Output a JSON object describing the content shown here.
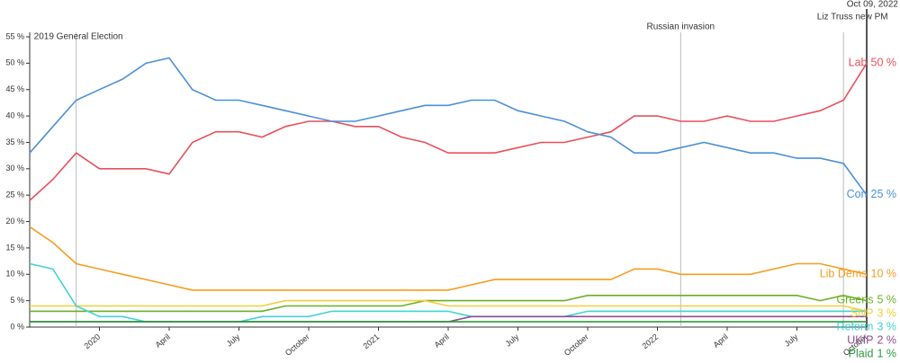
{
  "chart_data": {
    "type": "line",
    "x": [
      "2019-10",
      "2019-11",
      "2019-12",
      "2020-01",
      "2020-02",
      "2020-03",
      "2020-04",
      "2020-05",
      "2020-06",
      "2020-07",
      "2020-08",
      "2020-09",
      "2020-10",
      "2020-11",
      "2020-12",
      "2021-01",
      "2021-02",
      "2021-03",
      "2021-04",
      "2021-05",
      "2021-06",
      "2021-07",
      "2021-08",
      "2021-09",
      "2021-10",
      "2021-11",
      "2021-12",
      "2022-01",
      "2022-02",
      "2022-03",
      "2022-04",
      "2022-05",
      "2022-06",
      "2022-07",
      "2022-08",
      "2022-09",
      "2022-10"
    ],
    "xlim": [
      "2019-10",
      "2022-10"
    ],
    "xticks": [
      {
        "value": "2020-01",
        "label": "2020"
      },
      {
        "value": "2020-04",
        "label": "April"
      },
      {
        "value": "2020-07",
        "label": "July"
      },
      {
        "value": "2020-10",
        "label": "October"
      },
      {
        "value": "2021-01",
        "label": "2021"
      },
      {
        "value": "2021-04",
        "label": "April"
      },
      {
        "value": "2021-07",
        "label": "July"
      },
      {
        "value": "2021-10",
        "label": "October"
      },
      {
        "value": "2022-01",
        "label": "2022"
      },
      {
        "value": "2022-04",
        "label": "April"
      },
      {
        "value": "2022-07",
        "label": "July"
      },
      {
        "value": "2022-10",
        "label": "October"
      }
    ],
    "ylim": [
      0,
      55
    ],
    "yticks": [
      {
        "value": 0,
        "label": "0 %"
      },
      {
        "value": 5,
        "label": "5 %"
      },
      {
        "value": 10,
        "label": "10 %"
      },
      {
        "value": 15,
        "label": "15 %"
      },
      {
        "value": 20,
        "label": "20 %"
      },
      {
        "value": 25,
        "label": "25 %"
      },
      {
        "value": 30,
        "label": "30 %"
      },
      {
        "value": 35,
        "label": "35 %"
      },
      {
        "value": 40,
        "label": "40 %"
      },
      {
        "value": 45,
        "label": "45 %"
      },
      {
        "value": 50,
        "label": "50 %"
      },
      {
        "value": 55,
        "label": "55 %"
      }
    ],
    "annotations": [
      {
        "x": "2019-12",
        "label": "2019 General Election"
      },
      {
        "x": "2022-02",
        "label": "Russian invasion"
      },
      {
        "x": "2022-09",
        "label": "Liz Truss new PM"
      },
      {
        "x": "2022-10",
        "label": "Oct 09, 2022"
      }
    ],
    "series": [
      {
        "name": "Lab",
        "color": "#e8505b",
        "end_label": "50 %",
        "values": [
          24,
          28,
          33,
          30,
          30,
          30,
          29,
          35,
          37,
          37,
          36,
          38,
          39,
          39,
          38,
          38,
          36,
          35,
          33,
          33,
          33,
          34,
          35,
          35,
          36,
          37,
          40,
          40,
          39,
          39,
          40,
          39,
          39,
          40,
          41,
          43,
          50
        ]
      },
      {
        "name": "Con",
        "color": "#4a90d9",
        "end_label": "25 %",
        "values": [
          33,
          38,
          43,
          45,
          47,
          50,
          51,
          45,
          43,
          43,
          42,
          41,
          40,
          39,
          39,
          40,
          41,
          42,
          42,
          43,
          43,
          41,
          40,
          39,
          37,
          36,
          33,
          33,
          34,
          35,
          34,
          33,
          33,
          32,
          32,
          31,
          25
        ]
      },
      {
        "name": "Lib Dems",
        "color": "#f59d1f",
        "end_label": "10 %",
        "values": [
          19,
          16,
          12,
          11,
          10,
          9,
          8,
          7,
          7,
          7,
          7,
          7,
          7,
          7,
          7,
          7,
          7,
          7,
          7,
          8,
          9,
          9,
          9,
          9,
          9,
          9,
          11,
          11,
          10,
          10,
          10,
          10,
          11,
          12,
          12,
          11,
          10
        ]
      },
      {
        "name": "Greens",
        "color": "#6ab023",
        "end_label": "5 %",
        "values": [
          3,
          3,
          3,
          3,
          3,
          3,
          3,
          3,
          3,
          3,
          3,
          4,
          4,
          4,
          4,
          4,
          4,
          5,
          5,
          5,
          5,
          5,
          5,
          5,
          6,
          6,
          6,
          6,
          6,
          6,
          6,
          6,
          6,
          6,
          5,
          6,
          5
        ]
      },
      {
        "name": "SNP",
        "color": "#f2cf3a",
        "end_label": "3 %",
        "values": [
          4,
          4,
          4,
          4,
          4,
          4,
          4,
          4,
          4,
          4,
          4,
          5,
          5,
          5,
          5,
          5,
          5,
          5,
          4,
          4,
          4,
          4,
          4,
          4,
          4,
          4,
          4,
          4,
          4,
          4,
          4,
          4,
          4,
          4,
          4,
          4,
          3
        ]
      },
      {
        "name": "Reform",
        "color": "#3fd4d4",
        "end_label": "3 %",
        "values": [
          12,
          11,
          4,
          2,
          2,
          1,
          1,
          1,
          1,
          1,
          2,
          2,
          2,
          3,
          3,
          3,
          3,
          3,
          3,
          2,
          2,
          2,
          2,
          2,
          3,
          3,
          3,
          3,
          3,
          3,
          3,
          3,
          3,
          3,
          3,
          3,
          3
        ]
      },
      {
        "name": "UKIP",
        "color": "#8e4e8e",
        "end_label": "2 %",
        "values": [
          1,
          1,
          1,
          1,
          1,
          1,
          1,
          1,
          1,
          1,
          1,
          1,
          1,
          1,
          1,
          1,
          1,
          1,
          1,
          2,
          2,
          2,
          2,
          2,
          2,
          2,
          2,
          2,
          2,
          2,
          2,
          2,
          2,
          2,
          2,
          2,
          2
        ]
      },
      {
        "name": "Plaid",
        "color": "#2a9b3b",
        "end_label": "1 %",
        "values": [
          1,
          1,
          1,
          1,
          1,
          1,
          1,
          1,
          1,
          1,
          1,
          1,
          1,
          1,
          1,
          1,
          1,
          1,
          1,
          1,
          1,
          1,
          1,
          1,
          1,
          1,
          1,
          1,
          1,
          1,
          1,
          1,
          1,
          1,
          1,
          1,
          1
        ]
      }
    ]
  }
}
